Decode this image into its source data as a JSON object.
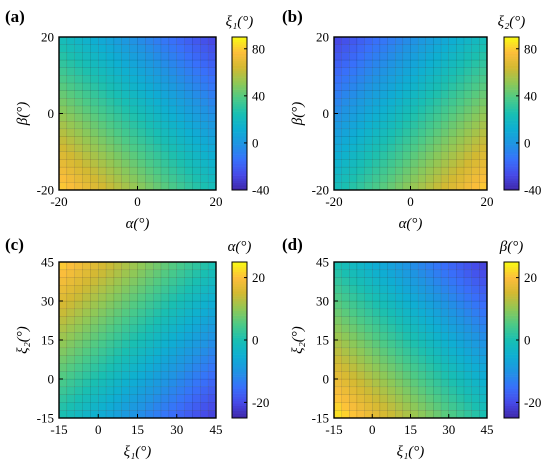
{
  "chart_data": [
    {
      "type": "heatmap",
      "panel_label": "(a)",
      "xlabel": "α(°)",
      "ylabel": "β(°)",
      "colorbar_label": "ξ₁(°)",
      "x_ticks": [
        "-20",
        "0",
        "20"
      ],
      "y_ticks": [
        "-20",
        "0",
        "20"
      ],
      "colorbar_ticks": [
        "-40",
        "0",
        "40",
        "80"
      ],
      "xlim": [
        -20,
        20
      ],
      "ylim": [
        -20,
        20
      ],
      "clim": [
        -40,
        90
      ],
      "colorbar_tick_values": [
        -40,
        0,
        40,
        80
      ],
      "grid_size": 20,
      "corner_values": {
        "bottom_left": 82,
        "bottom_right": 22,
        "top_left": 22,
        "top_right": -30
      }
    },
    {
      "type": "heatmap",
      "panel_label": "(b)",
      "xlabel": "α(°)",
      "ylabel": "β(°)",
      "colorbar_label": "ξ₂(°)",
      "x_ticks": [
        "-20",
        "0",
        "20"
      ],
      "y_ticks": [
        "-20",
        "0",
        "20"
      ],
      "colorbar_ticks": [
        "-40",
        "0",
        "40",
        "80"
      ],
      "xlim": [
        -20,
        20
      ],
      "ylim": [
        -20,
        20
      ],
      "clim": [
        -40,
        90
      ],
      "colorbar_tick_values": [
        -40,
        0,
        40,
        80
      ],
      "grid_size": 20,
      "corner_values": {
        "bottom_left": 22,
        "bottom_right": 82,
        "top_left": -30,
        "top_right": 22
      }
    },
    {
      "type": "heatmap",
      "panel_label": "(c)",
      "xlabel": "ξ₁(°)",
      "ylabel": "ξ₂(°)",
      "colorbar_label": "α(°)",
      "x_ticks": [
        "-15",
        "0",
        "15",
        "30",
        "45"
      ],
      "y_ticks": [
        "-15",
        "0",
        "15",
        "30",
        "45"
      ],
      "colorbar_ticks": [
        "-20",
        "0",
        "20"
      ],
      "xlim": [
        -15,
        45
      ],
      "ylim": [
        -15,
        45
      ],
      "clim": [
        -25,
        25
      ],
      "colorbar_tick_values": [
        -20,
        0,
        20
      ],
      "grid_size": 20,
      "corner_values": {
        "bottom_left": 0,
        "bottom_right": -22,
        "top_left": 22,
        "top_right": 0
      }
    },
    {
      "type": "heatmap",
      "panel_label": "(d)",
      "xlabel": "ξ₁(°)",
      "ylabel": "ξ₂(°)",
      "colorbar_label": "β(°)",
      "x_ticks": [
        "-15",
        "0",
        "15",
        "30",
        "45"
      ],
      "y_ticks": [
        "-15",
        "0",
        "15",
        "30",
        "45"
      ],
      "colorbar_ticks": [
        "-20",
        "0",
        "20"
      ],
      "xlim": [
        -15,
        45
      ],
      "ylim": [
        -15,
        45
      ],
      "clim": [
        -25,
        25
      ],
      "colorbar_tick_values": [
        -20,
        0,
        20
      ],
      "grid_size": 20,
      "corner_values": {
        "bottom_left": 24,
        "bottom_right": 0,
        "top_left": 0,
        "top_right": -22
      }
    }
  ]
}
